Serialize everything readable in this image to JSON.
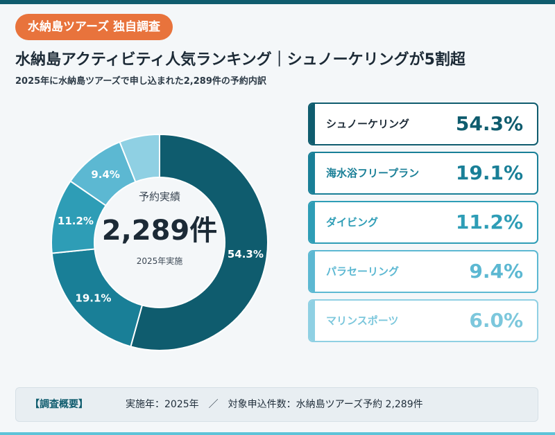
{
  "badge": "水納島ツアーズ 独自調査",
  "title": "水納島アクティビティ人気ランキング｜シュノーケリングが5割超",
  "subtitle": "2025年に水納島ツアーズで申し込まれた2,289件の予約内訳",
  "center": {
    "caption": "予約実績",
    "value": "2,289件",
    "note": "2025年実施"
  },
  "chart_data": {
    "type": "pie",
    "unit": "%",
    "total_label": "2,289件",
    "categories": [
      "シュノーケリング",
      "海水浴フリープラン",
      "ダイビング",
      "パラセーリング",
      "マリンスポーツ"
    ],
    "values": [
      54.3,
      19.1,
      11.2,
      9.4,
      6.0
    ],
    "value_labels": [
      "54.3%",
      "19.1%",
      "11.2%",
      "9.4%",
      "6.0%"
    ],
    "slice_labels": [
      "54.3%",
      "19.1%",
      "11.2%",
      "9.4%",
      ""
    ],
    "colors": [
      "#0f5c6e",
      "#197f97",
      "#2e9db6",
      "#5cb8d2",
      "#8fd0e3"
    ]
  },
  "ranking": [
    {
      "name": "シュノーケリング",
      "pct": "54.3%"
    },
    {
      "name": "海水浴フリープラン",
      "pct": "19.1%"
    },
    {
      "name": "ダイビング",
      "pct": "11.2%"
    },
    {
      "name": "パラセーリング",
      "pct": "9.4%"
    },
    {
      "name": "マリンスポーツ",
      "pct": "6.0%"
    }
  ],
  "summary": {
    "label": "【調査概要】",
    "text": "実施年：2025年　／　対象申込件数：水納島ツアーズ予約 2,289件"
  }
}
